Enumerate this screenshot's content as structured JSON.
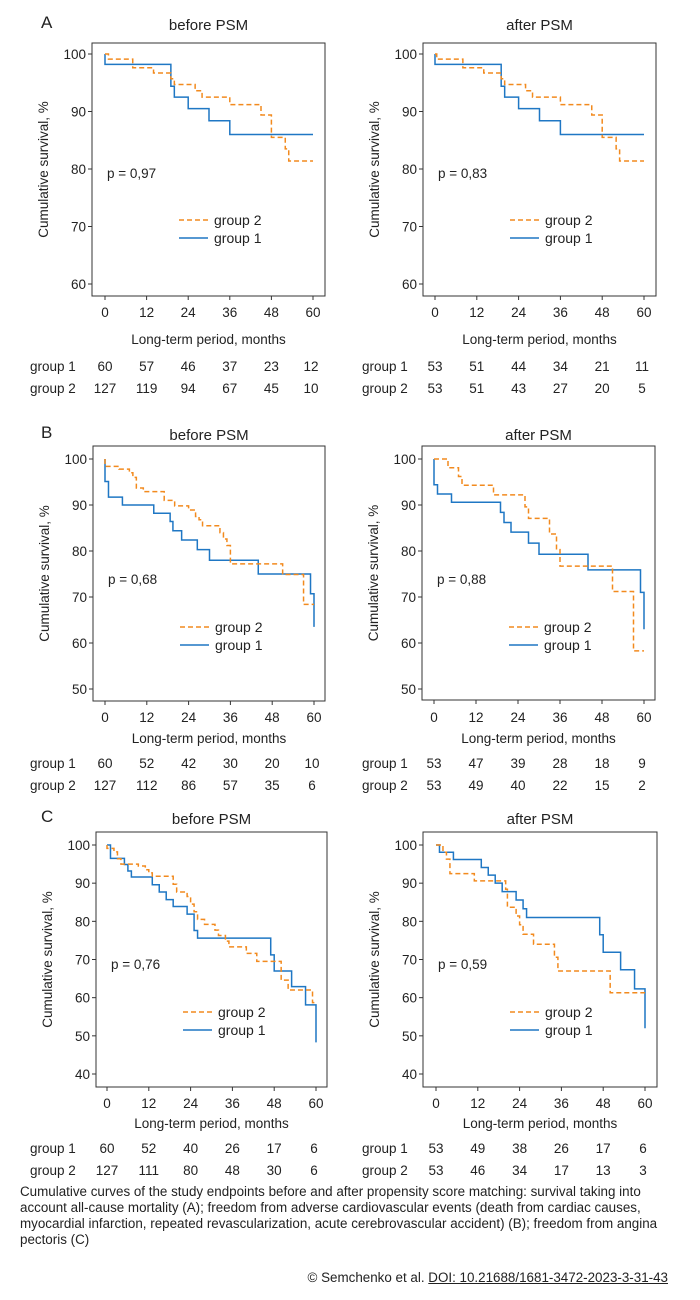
{
  "colors": {
    "group1": "#1f77c4",
    "group2": "#f28a1e"
  },
  "panels": [
    {
      "letter": "A",
      "title": "before PSM",
      "p_value": "p = 0,97",
      "ylabel": "Cumulative survival, %",
      "xlabel": "Long-term period, months",
      "ylim": [
        60,
        100
      ],
      "yticks": [
        "60",
        "70",
        "80",
        "90",
        "100"
      ],
      "xticks": [
        "0",
        "12",
        "24",
        "36",
        "48",
        "60"
      ],
      "legend": [
        "group 2",
        "group 1"
      ],
      "series": [
        {
          "name": "group 1",
          "steps": [
            [
              0,
              100
            ],
            [
              0,
              98.2
            ],
            [
              19,
              94.4
            ],
            [
              20,
              92.5
            ],
            [
              24,
              90.5
            ],
            [
              30,
              88.4
            ],
            [
              36,
              86
            ]
          ],
          "end": 60
        },
        {
          "name": "group 2",
          "steps": [
            [
              0,
              100
            ],
            [
              1,
              99.1
            ],
            [
              8,
              97.6
            ],
            [
              14,
              96.7
            ],
            [
              19,
              95.7
            ],
            [
              20,
              94.7
            ],
            [
              26,
              93.6
            ],
            [
              28,
              92.5
            ],
            [
              36,
              91.2
            ],
            [
              45,
              89.4
            ],
            [
              48,
              85.5
            ],
            [
              52,
              83.5
            ],
            [
              53,
              81.4
            ]
          ],
          "end": 60
        }
      ],
      "risk": [
        {
          "label": "group 1",
          "values": [
            "60",
            "57",
            "46",
            "37",
            "23",
            "12"
          ]
        },
        {
          "label": "group 2",
          "values": [
            "127",
            "119",
            "94",
            "67",
            "45",
            "10"
          ]
        }
      ]
    },
    {
      "letter": "",
      "title": "after PSM",
      "p_value": "p = 0,83",
      "ylabel": "Cumulative survival, %",
      "xlabel": "Long-term period, months",
      "ylim": [
        60,
        100
      ],
      "yticks": [
        "60",
        "70",
        "80",
        "90",
        "100"
      ],
      "xticks": [
        "0",
        "12",
        "24",
        "36",
        "48",
        "60"
      ],
      "legend": [
        "group 2",
        "group 1"
      ],
      "series": [
        {
          "name": "group 1",
          "steps": [
            [
              0,
              100
            ],
            [
              0,
              98.2
            ],
            [
              19,
              94.4
            ],
            [
              20,
              92.5
            ],
            [
              24,
              90.5
            ],
            [
              30,
              88.4
            ],
            [
              36,
              86
            ]
          ],
          "end": 60
        },
        {
          "name": "group 2",
          "steps": [
            [
              0,
              100
            ],
            [
              0.5,
              99.1
            ],
            [
              8,
              97.6
            ],
            [
              14,
              96.7
            ],
            [
              19,
              95.7
            ],
            [
              20,
              94.7
            ],
            [
              26,
              93.6
            ],
            [
              28,
              92.5
            ],
            [
              36,
              91.2
            ],
            [
              45,
              89.4
            ],
            [
              48,
              85.5
            ],
            [
              52,
              83.5
            ],
            [
              53,
              81.4
            ]
          ],
          "end": 60
        }
      ],
      "risk": [
        {
          "label": "group 1",
          "values": [
            "53",
            "51",
            "44",
            "34",
            "21",
            "11"
          ]
        },
        {
          "label": "group 2",
          "values": [
            "53",
            "51",
            "43",
            "27",
            "20",
            "5"
          ]
        }
      ]
    },
    {
      "letter": "B",
      "title": "before PSM",
      "p_value": "p = 0,68",
      "ylabel": "Cumulative survival, %",
      "xlabel": "Long-term period, months",
      "ylim": [
        50,
        100
      ],
      "yticks": [
        "50",
        "60",
        "70",
        "80",
        "90",
        "100"
      ],
      "xticks": [
        "0",
        "12",
        "24",
        "36",
        "48",
        "60"
      ],
      "legend": [
        "group 2",
        "group 1"
      ],
      "series": [
        {
          "name": "group 1",
          "steps": [
            [
              0,
              100
            ],
            [
              0,
              95.1
            ],
            [
              1,
              91.7
            ],
            [
              5,
              90
            ],
            [
              14,
              88.2
            ],
            [
              18.7,
              86.4
            ],
            [
              19.5,
              84.4
            ],
            [
              22,
              82.4
            ],
            [
              26.5,
              80.3
            ],
            [
              30,
              78
            ],
            [
              44,
              75
            ],
            [
              59,
              70.7
            ],
            [
              60,
              63.5
            ]
          ],
          "end": 60
        },
        {
          "name": "group 2",
          "steps": [
            [
              0,
              98.4
            ],
            [
              4,
              97.8
            ],
            [
              7,
              97
            ],
            [
              8,
              96
            ],
            [
              9,
              93.7
            ],
            [
              11,
              92.9
            ],
            [
              17,
              91
            ],
            [
              20,
              89.8
            ],
            [
              24,
              88.9
            ],
            [
              26,
              87.5
            ],
            [
              27,
              86.8
            ],
            [
              28,
              85.5
            ],
            [
              33,
              84
            ],
            [
              34,
              82.6
            ],
            [
              35,
              81.2
            ],
            [
              36,
              77.2
            ],
            [
              51,
              74.9
            ],
            [
              57,
              68.4
            ]
          ],
          "end": 60
        }
      ],
      "risk": [
        {
          "label": "group 1",
          "values": [
            "60",
            "52",
            "42",
            "30",
            "20",
            "10"
          ]
        },
        {
          "label": "group 2",
          "values": [
            "127",
            "112",
            "86",
            "57",
            "35",
            "6"
          ]
        }
      ]
    },
    {
      "letter": "",
      "title": "after PSM",
      "p_value": "p = 0,88",
      "ylabel": "Cumulative survival, %",
      "xlabel": "Long-term period, months",
      "ylim": [
        50,
        100
      ],
      "yticks": [
        "50",
        "60",
        "70",
        "80",
        "90",
        "100"
      ],
      "xticks": [
        "0",
        "12",
        "24",
        "36",
        "48",
        "60"
      ],
      "legend": [
        "group 2",
        "group 1"
      ],
      "series": [
        {
          "name": "group 1",
          "steps": [
            [
              0,
              100
            ],
            [
              0,
              94.4
            ],
            [
              1,
              92.4
            ],
            [
              5,
              90.6
            ],
            [
              19,
              88.4
            ],
            [
              20,
              86.2
            ],
            [
              22,
              84.1
            ],
            [
              27,
              81.7
            ],
            [
              30,
              79.3
            ],
            [
              44,
              75.9
            ],
            [
              59,
              71
            ],
            [
              60,
              63
            ]
          ],
          "end": 60
        },
        {
          "name": "group 2",
          "steps": [
            [
              0,
              100
            ],
            [
              4,
              98.1
            ],
            [
              7,
              96.2
            ],
            [
              8,
              94.3
            ],
            [
              17,
              92.2
            ],
            [
              26,
              89.6
            ],
            [
              27,
              87.1
            ],
            [
              33,
              83.7
            ],
            [
              35,
              80.3
            ],
            [
              36,
              76.7
            ],
            [
              51,
              71.2
            ],
            [
              57,
              58.3
            ]
          ],
          "end": 60
        }
      ],
      "risk": [
        {
          "label": "group 1",
          "values": [
            "53",
            "47",
            "39",
            "28",
            "18",
            "9"
          ]
        },
        {
          "label": "group 2",
          "values": [
            "53",
            "49",
            "40",
            "22",
            "15",
            "2"
          ]
        }
      ]
    },
    {
      "letter": "C",
      "title": "before PSM",
      "p_value": "p = 0,76",
      "ylabel": "Cumulative survival, %",
      "xlabel": "Long-term period, months",
      "ylim": [
        40,
        100
      ],
      "yticks": [
        "40",
        "50",
        "60",
        "70",
        "80",
        "90",
        "100"
      ],
      "xticks": [
        "0",
        "12",
        "24",
        "36",
        "48",
        "60"
      ],
      "legend": [
        "group 2",
        "group 1"
      ],
      "series": [
        {
          "name": "group 1",
          "steps": [
            [
              0,
              100
            ],
            [
              1,
              96.5
            ],
            [
              5,
              94.9
            ],
            [
              6,
              93.2
            ],
            [
              7,
              91.6
            ],
            [
              13,
              89.6
            ],
            [
              15,
              87.7
            ],
            [
              17,
              85.7
            ],
            [
              19,
              83.9
            ],
            [
              23,
              81.9
            ],
            [
              25,
              77.6
            ],
            [
              26,
              75.6
            ],
            [
              47,
              71.2
            ],
            [
              48,
              67
            ],
            [
              53,
              62.9
            ],
            [
              57,
              58.1
            ],
            [
              60,
              48.3
            ]
          ],
          "end": 60
        },
        {
          "name": "group 2",
          "steps": [
            [
              0,
              99.1
            ],
            [
              2,
              98.2
            ],
            [
              3,
              96.4
            ],
            [
              4,
              95
            ],
            [
              9,
              94.5
            ],
            [
              11,
              93.5
            ],
            [
              12,
              92.7
            ],
            [
              13,
              91.8
            ],
            [
              19,
              89.7
            ],
            [
              20,
              87.7
            ],
            [
              23,
              86.5
            ],
            [
              24,
              84.5
            ],
            [
              25,
              82.5
            ],
            [
              26,
              80.5
            ],
            [
              28,
              79.2
            ],
            [
              31,
              77.7
            ],
            [
              32,
              76.3
            ],
            [
              34,
              74.8
            ],
            [
              35,
              73.3
            ],
            [
              40,
              71.6
            ],
            [
              43,
              69.5
            ],
            [
              50,
              64.6
            ],
            [
              52,
              62
            ],
            [
              59,
              58.7
            ]
          ],
          "end": 60
        }
      ],
      "risk": [
        {
          "label": "group 1",
          "values": [
            "60",
            "52",
            "40",
            "26",
            "17",
            "6"
          ]
        },
        {
          "label": "group 2",
          "values": [
            "127",
            "111",
            "80",
            "48",
            "30",
            "6"
          ]
        }
      ]
    },
    {
      "letter": "",
      "title": "after PSM",
      "p_value": "p = 0,59",
      "ylabel": "Cumulative survival, %",
      "xlabel": "Long-term period, months",
      "ylim": [
        40,
        100
      ],
      "yticks": [
        "40",
        "50",
        "60",
        "70",
        "80",
        "90",
        "100"
      ],
      "xticks": [
        "0",
        "12",
        "24",
        "36",
        "48",
        "60"
      ],
      "legend": [
        "group 2",
        "group 1"
      ],
      "series": [
        {
          "name": "group 1",
          "steps": [
            [
              0,
              100
            ],
            [
              1,
              98.1
            ],
            [
              5,
              96.2
            ],
            [
              13,
              94.1
            ],
            [
              15,
              92.1
            ],
            [
              17,
              90
            ],
            [
              19,
              87.8
            ],
            [
              23,
              85.6
            ],
            [
              25,
              83.3
            ],
            [
              26,
              81
            ],
            [
              47,
              76.5
            ],
            [
              48,
              71.9
            ],
            [
              53,
              67.3
            ],
            [
              57,
              62.3
            ],
            [
              60,
              52
            ]
          ],
          "end": 60
        },
        {
          "name": "group 2",
          "steps": [
            [
              0,
              100
            ],
            [
              2,
              98.1
            ],
            [
              3,
              96.3
            ],
            [
              4,
              92.5
            ],
            [
              11,
              90.6
            ],
            [
              20,
              88.4
            ],
            [
              20.5,
              83.7
            ],
            [
              23,
              81.4
            ],
            [
              24,
              79.1
            ],
            [
              25,
              76.6
            ],
            [
              28,
              74
            ],
            [
              34,
              70.6
            ],
            [
              35,
              67
            ],
            [
              50,
              61.3
            ]
          ],
          "end": 60
        }
      ],
      "risk": [
        {
          "label": "group 1",
          "values": [
            "53",
            "49",
            "38",
            "26",
            "17",
            "6"
          ]
        },
        {
          "label": "group 2",
          "values": [
            "53",
            "46",
            "34",
            "17",
            "13",
            "3"
          ]
        }
      ]
    }
  ],
  "caption": "Cumulative curves of the study endpoints before and after propensity score matching: survival taking into account all-cause mortality (A); freedom from adverse cardiovascular events (death from cardiac causes, myocardial infarction, repeated revascularization, acute cerebrovascular accident) (B); freedom from angina pectoris (C)",
  "credit": {
    "prefix": "© Semchenko et al. ",
    "doi": "DOI: 10.21688/1681-3472-2023-3-31-43"
  }
}
